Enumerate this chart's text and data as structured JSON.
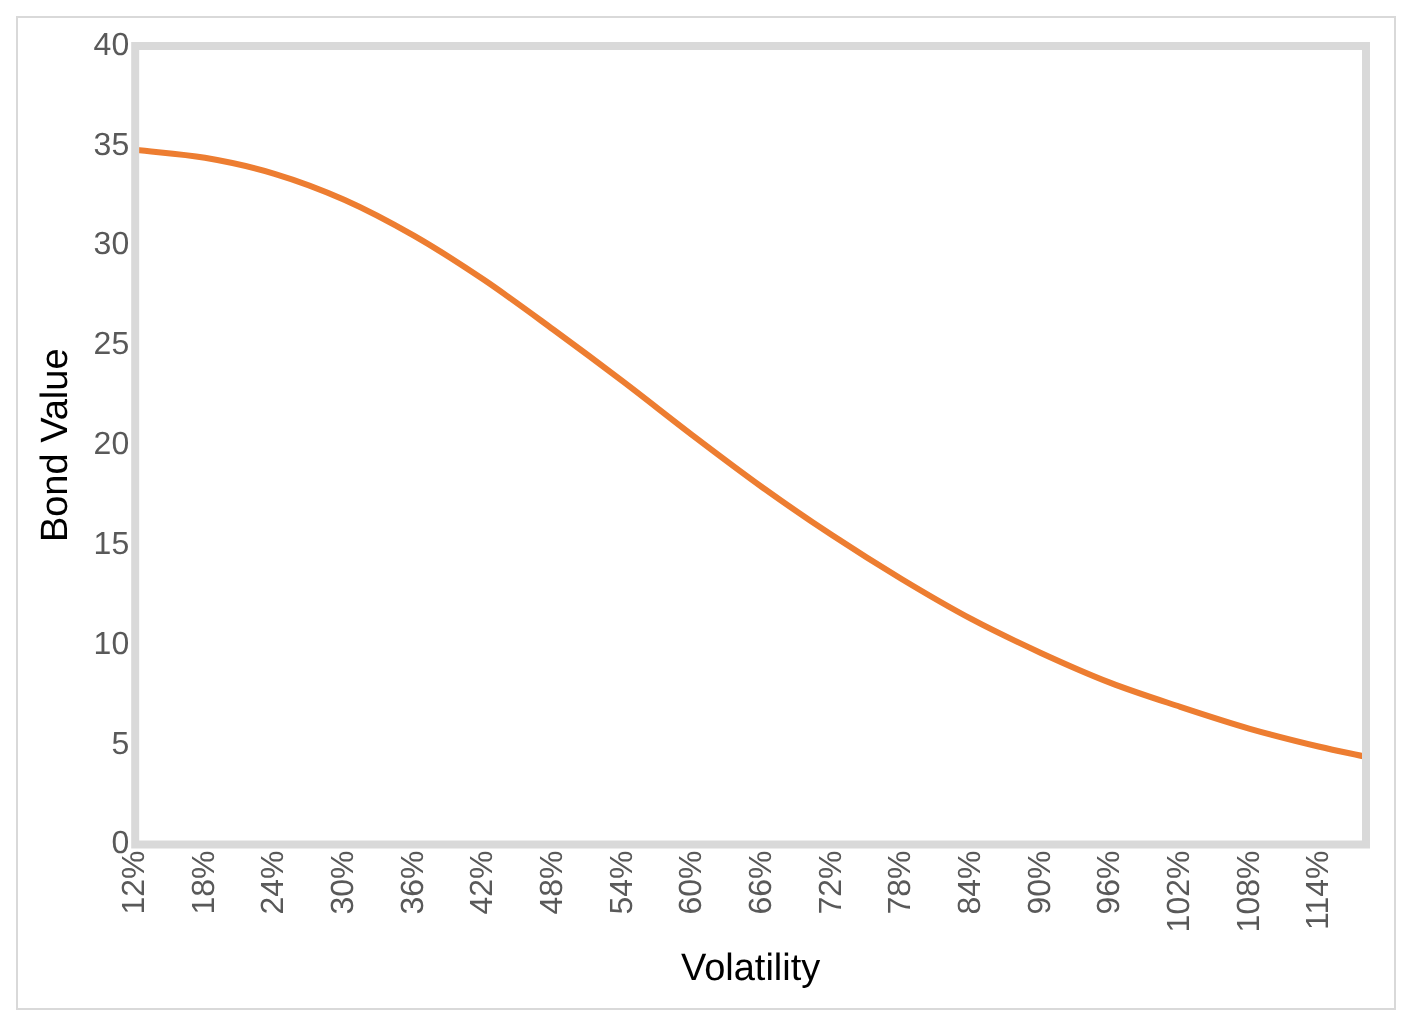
{
  "chart_data": {
    "type": "line",
    "xlabel": "Volatility",
    "ylabel": "Bond Value",
    "x": [
      12,
      18,
      24,
      30,
      36,
      42,
      48,
      54,
      60,
      66,
      72,
      78,
      84,
      90,
      96,
      102,
      108,
      114,
      118
    ],
    "series": [
      {
        "color": "#ed7d31",
        "values": [
          34.8,
          34.4,
          33.6,
          32.3,
          30.5,
          28.3,
          25.8,
          23.2,
          20.5,
          17.9,
          15.5,
          13.3,
          11.3,
          9.6,
          8.1,
          6.9,
          5.8,
          4.9,
          4.4
        ]
      }
    ],
    "xlim": [
      12,
      118
    ],
    "xticks": [
      {
        "value": 12,
        "label": "12%"
      },
      {
        "value": 18,
        "label": "18%"
      },
      {
        "value": 24,
        "label": "24%"
      },
      {
        "value": 30,
        "label": "30%"
      },
      {
        "value": 36,
        "label": "36%"
      },
      {
        "value": 42,
        "label": "42%"
      },
      {
        "value": 48,
        "label": "48%"
      },
      {
        "value": 54,
        "label": "54%"
      },
      {
        "value": 60,
        "label": "60%"
      },
      {
        "value": 66,
        "label": "66%"
      },
      {
        "value": 72,
        "label": "72%"
      },
      {
        "value": 78,
        "label": "78%"
      },
      {
        "value": 84,
        "label": "84%"
      },
      {
        "value": 90,
        "label": "90%"
      },
      {
        "value": 96,
        "label": "96%"
      },
      {
        "value": 102,
        "label": "102%"
      },
      {
        "value": 108,
        "label": "108%"
      },
      {
        "value": 114,
        "label": "114%"
      }
    ],
    "ylim": [
      0,
      40
    ],
    "yticks": [
      0,
      5,
      10,
      15,
      20,
      25,
      30,
      35,
      40
    ],
    "grid": false,
    "legend": false,
    "marker": "none",
    "line_style": "solid"
  }
}
